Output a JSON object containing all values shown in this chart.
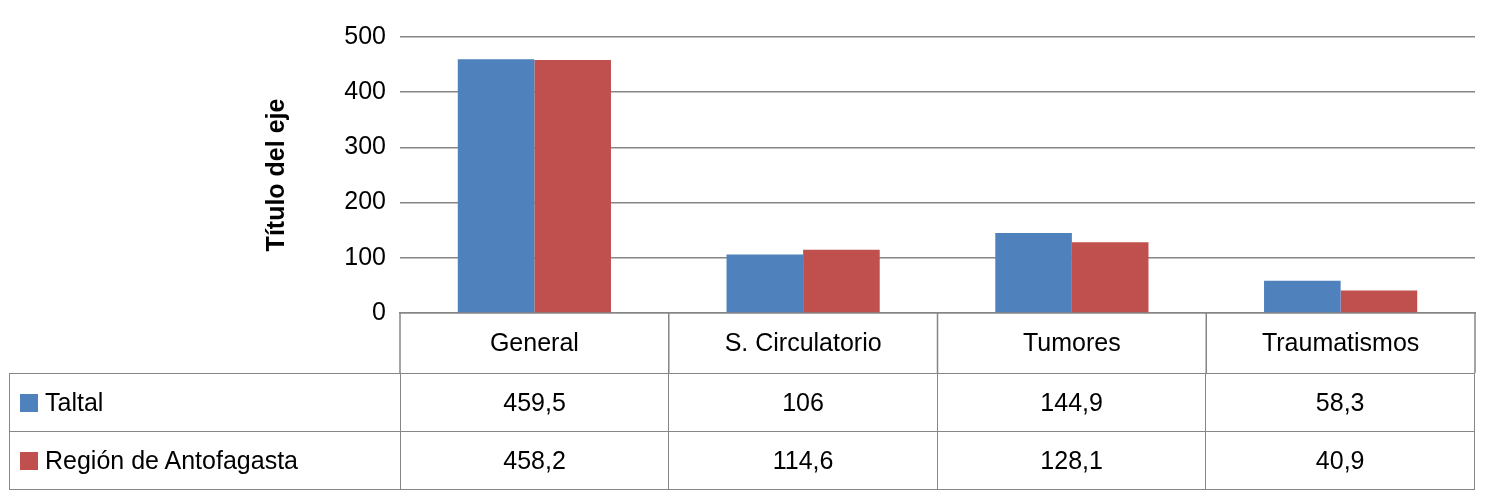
{
  "chart_data": {
    "type": "bar",
    "ylabel": "Título del eje",
    "categories": [
      "General",
      "S. Circulatorio",
      "Tumores",
      "Traumatismos"
    ],
    "series": [
      {
        "name": "Taltal",
        "color": "#4f81bd",
        "values": [
          459.5,
          106,
          144.9,
          58.3
        ],
        "value_labels": [
          "459,5",
          "106",
          "144,9",
          "58,3"
        ]
      },
      {
        "name": "Región de Antofagasta",
        "color": "#c0504d",
        "values": [
          458.2,
          114.6,
          128.1,
          40.9
        ],
        "value_labels": [
          "458,2",
          "114,6",
          "128,1",
          "40,9"
        ]
      }
    ],
    "ylim": [
      0,
      500
    ],
    "yticks": [
      0,
      100,
      200,
      300,
      400,
      500
    ],
    "grid": "y",
    "legend": "bottom"
  }
}
